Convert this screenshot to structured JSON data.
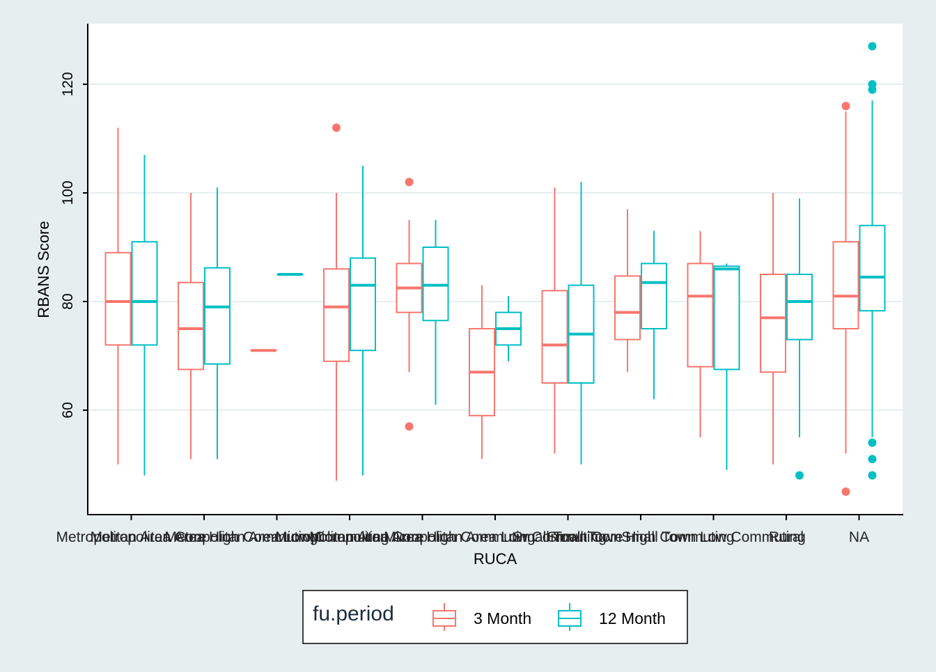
{
  "colors": {
    "background": "#e6eef0",
    "panel": "#ffffff",
    "grid": "#e6eef0",
    "axis": "#000000",
    "series_3_month": "#F8766D",
    "series_12_month": "#00BFC4"
  },
  "chart_data": {
    "type": "boxplot",
    "title": "",
    "xlabel": "RUCA",
    "ylabel": "RBANS Score",
    "ylim": [
      44,
      130
    ],
    "yticks": [
      60,
      80,
      100,
      120
    ],
    "grid": "horizontal major",
    "legend": {
      "title": "fu.period",
      "position": "bottom",
      "entries": [
        "3 Month",
        "12 Month"
      ]
    },
    "categories": [
      "Metropolitan Area Core",
      "Metropolitan Area High Commuting",
      "Metropolitan Area Low Commuting",
      "Micropolitan Area Core",
      "Micropolitan Area High Commuting",
      "Micropolitan Area Low Commuting",
      "Small Town Core",
      "Small Town High Commuting",
      "Small Town Low Commuting",
      "Rural",
      "NA"
    ],
    "series": [
      {
        "name": "3 Month",
        "boxes": [
          {
            "min": 50,
            "q1": 72,
            "median": 80,
            "q3": 89,
            "max": 112,
            "outliers": []
          },
          {
            "min": 51,
            "q1": 67.5,
            "median": 75,
            "q3": 83.5,
            "max": 100,
            "outliers": []
          },
          {
            "min": 71,
            "q1": 71,
            "median": 71,
            "q3": 71,
            "max": 71,
            "outliers": []
          },
          {
            "min": 47,
            "q1": 69,
            "median": 79,
            "q3": 86,
            "max": 100,
            "outliers": [
              112
            ]
          },
          {
            "min": 67,
            "q1": 78,
            "median": 82.5,
            "q3": 87,
            "max": 95,
            "outliers": [
              102,
              57
            ]
          },
          {
            "min": 51,
            "q1": 59,
            "median": 67,
            "q3": 75,
            "max": 83,
            "outliers": []
          },
          {
            "min": 52,
            "q1": 65,
            "median": 72,
            "q3": 82,
            "max": 101,
            "outliers": []
          },
          {
            "min": 67,
            "q1": 73,
            "median": 78,
            "q3": 84.7,
            "max": 97,
            "outliers": []
          },
          {
            "min": 55,
            "q1": 68,
            "median": 81,
            "q3": 87,
            "max": 93,
            "outliers": []
          },
          {
            "min": 50,
            "q1": 67,
            "median": 77,
            "q3": 85,
            "max": 100,
            "outliers": []
          },
          {
            "min": 52,
            "q1": 75,
            "median": 81,
            "q3": 91,
            "max": 115,
            "outliers": [
              116,
              45
            ]
          }
        ]
      },
      {
        "name": "12 Month",
        "boxes": [
          {
            "min": 48,
            "q1": 72,
            "median": 80,
            "q3": 91,
            "max": 107,
            "outliers": []
          },
          {
            "min": 51,
            "q1": 68.5,
            "median": 79,
            "q3": 86.2,
            "max": 101,
            "outliers": []
          },
          {
            "min": 85,
            "q1": 85,
            "median": 85,
            "q3": 85,
            "max": 85,
            "outliers": []
          },
          {
            "min": 48,
            "q1": 71,
            "median": 83,
            "q3": 88,
            "max": 105,
            "outliers": []
          },
          {
            "min": 61,
            "q1": 76.5,
            "median": 83,
            "q3": 90,
            "max": 95,
            "outliers": []
          },
          {
            "min": 69,
            "q1": 72,
            "median": 75,
            "q3": 78,
            "max": 81,
            "outliers": []
          },
          {
            "min": 50,
            "q1": 65,
            "median": 74,
            "q3": 83,
            "max": 102,
            "outliers": []
          },
          {
            "min": 62,
            "q1": 75,
            "median": 83.5,
            "q3": 87,
            "max": 93,
            "outliers": []
          },
          {
            "min": 49,
            "q1": 67.5,
            "median": 86,
            "q3": 86.5,
            "max": 87,
            "outliers": []
          },
          {
            "min": 55,
            "q1": 73,
            "median": 80,
            "q3": 85,
            "max": 99,
            "outliers": [
              48
            ]
          },
          {
            "min": 55,
            "q1": 78.3,
            "median": 84.5,
            "q3": 94,
            "max": 117,
            "outliers": [
              127,
              120,
              119,
              54,
              51,
              48
            ]
          }
        ]
      }
    ]
  }
}
